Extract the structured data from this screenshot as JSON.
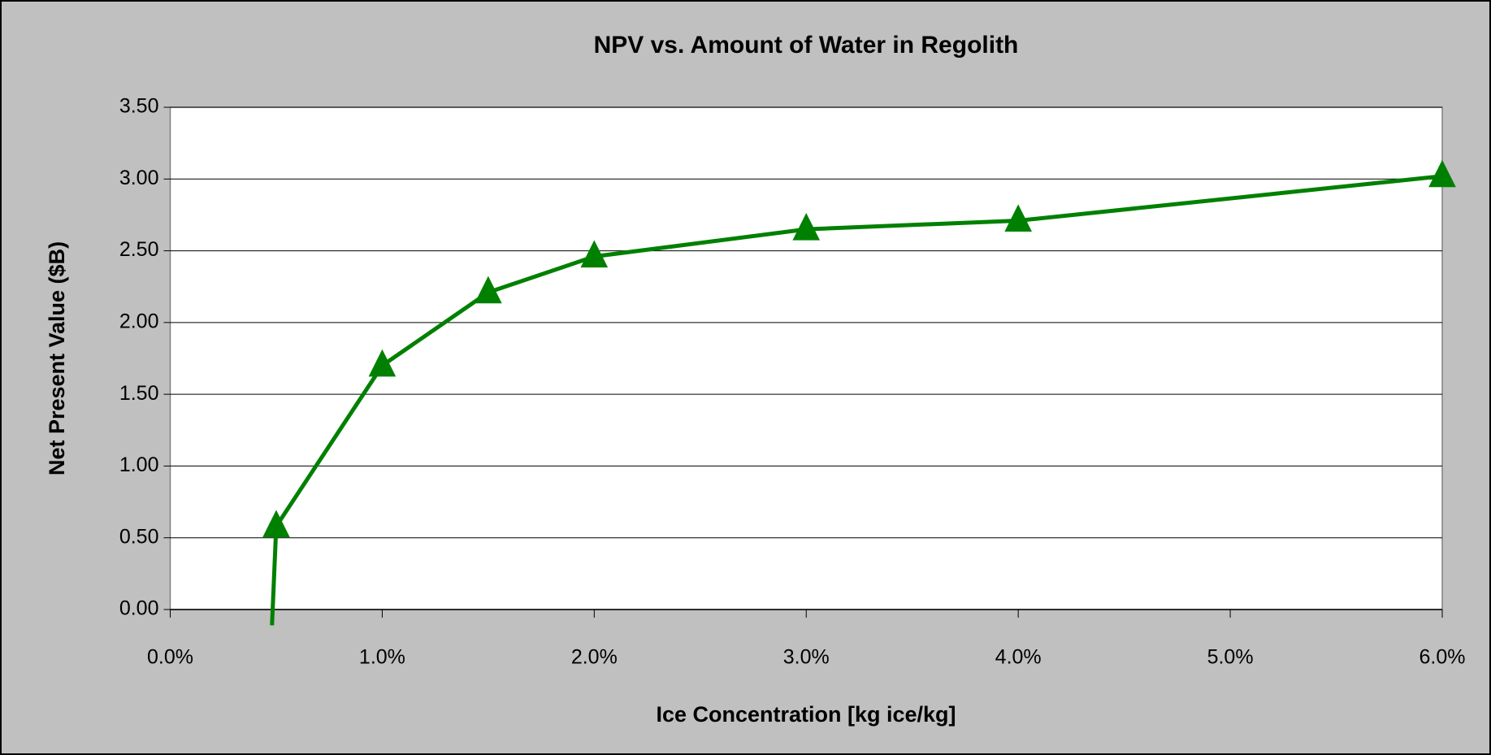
{
  "chart_data": {
    "type": "line",
    "title": "NPV vs. Amount of Water in Regolith",
    "x_label": "Ice Concentration [kg ice/kg]",
    "y_label": "Net Present Value ($B)",
    "x": [
      0.48,
      0.5,
      1,
      1.5,
      2,
      3,
      4,
      6
    ],
    "series": [
      {
        "name": "NPV",
        "color": "#008000",
        "values": [
          -0.11,
          0.58,
          1.7,
          2.21,
          2.46,
          2.65,
          2.71,
          3.02
        ]
      }
    ],
    "xlim": [
      0,
      6
    ],
    "xticks": [
      {
        "value": 0,
        "label": "0.0%"
      },
      {
        "value": 1,
        "label": "1.0%"
      },
      {
        "value": 2,
        "label": "2.0%"
      },
      {
        "value": 3,
        "label": "3.0%"
      },
      {
        "value": 4,
        "label": "4.0%"
      },
      {
        "value": 5,
        "label": "5.0%"
      },
      {
        "value": 6,
        "label": "6.0%"
      }
    ],
    "ylim": [
      0,
      3.5
    ],
    "yticks": [
      {
        "value": 0,
        "label": "0.00"
      },
      {
        "value": 0.5,
        "label": "0.50"
      },
      {
        "value": 1,
        "label": "1.00"
      },
      {
        "value": 1.5,
        "label": "1.50"
      },
      {
        "value": 2,
        "label": "2.00"
      },
      {
        "value": 2.5,
        "label": "2.50"
      },
      {
        "value": 3,
        "label": "3.00"
      },
      {
        "value": 3.5,
        "label": "3.50"
      }
    ],
    "grid": true
  }
}
